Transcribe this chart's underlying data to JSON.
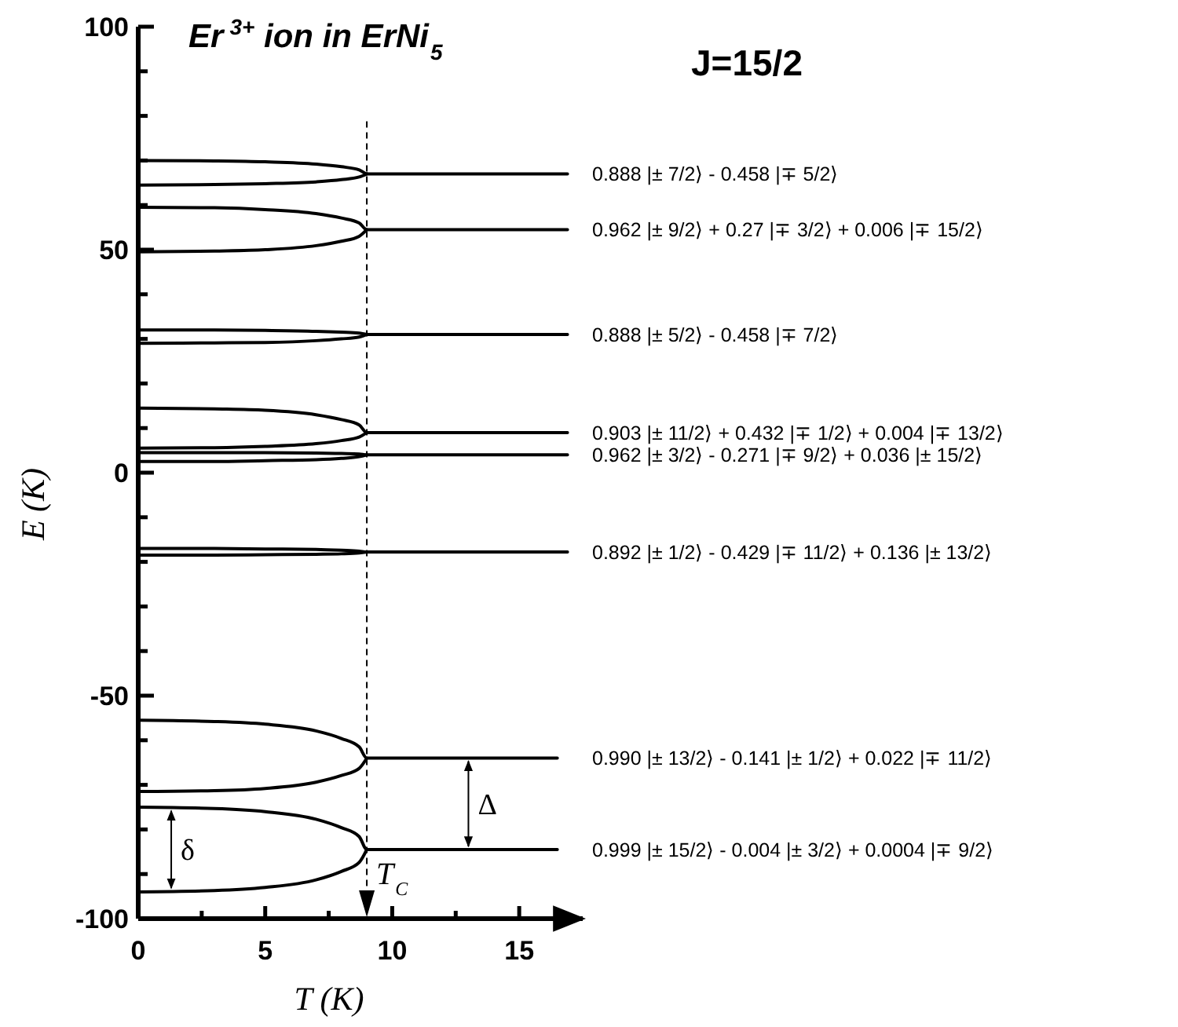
{
  "chart_data": {
    "type": "line",
    "title": "Er$^{3+}$ ion in ErNi$_{5}$",
    "subtitle": "J=15/2",
    "xlabel": "T (K)",
    "ylabel": "E (K)",
    "xlim": [
      0,
      17.5
    ],
    "ylim": [
      -100,
      100
    ],
    "xticks": [
      0,
      {
        "value": 2.5,
        "label": null
      },
      5,
      {
        "value": 7.5,
        "label": null
      },
      10,
      {
        "value": 12.5,
        "label": null
      },
      15
    ],
    "yticks": [
      -100,
      {
        "value": -90,
        "label": null
      },
      {
        "value": -80,
        "label": null
      },
      {
        "value": -70,
        "label": null
      },
      {
        "value": -60,
        "label": null
      },
      -50,
      {
        "value": -40,
        "label": null
      },
      {
        "value": -30,
        "label": null
      },
      {
        "value": -20,
        "label": null
      },
      {
        "value": -10,
        "label": null
      },
      0,
      {
        "value": 10,
        "label": null
      },
      {
        "value": 20,
        "label": null
      },
      {
        "value": 30,
        "label": null
      },
      {
        "value": 40,
        "label": null
      },
      50,
      {
        "value": 60,
        "label": null
      },
      {
        "value": 70,
        "label": null
      },
      {
        "value": 80,
        "label": null
      },
      {
        "value": 90,
        "label": null
      },
      100
    ],
    "grid": false,
    "marker": "none",
    "line_style": "solid",
    "series": [
      {
        "color": "#000000",
        "x": [
          0,
          3,
          5,
          7,
          8,
          8.7,
          9,
          16.9
        ],
        "values": [
          70,
          69.9,
          69.7,
          69.2,
          68.6,
          67.9,
          67,
          67
        ]
      },
      {
        "color": "#000000",
        "x": [
          0,
          3,
          5,
          7,
          8,
          8.7,
          9
        ],
        "values": [
          64.5,
          64.6,
          64.8,
          65.2,
          65.7,
          66.3,
          67
        ]
      },
      {
        "color": "#000000",
        "x": [
          0,
          3,
          5,
          7,
          8,
          8.7,
          9,
          16.9
        ],
        "values": [
          59.5,
          59.4,
          59,
          58.1,
          57.1,
          56,
          54.5,
          54.5
        ]
      },
      {
        "color": "#000000",
        "x": [
          0,
          3,
          5,
          7,
          8,
          8.7,
          9
        ],
        "values": [
          49.5,
          49.7,
          50,
          50.9,
          51.9,
          53,
          54.5
        ]
      },
      {
        "color": "#000000",
        "x": [
          0,
          3,
          5,
          7,
          8,
          8.7,
          9,
          16.9
        ],
        "values": [
          32,
          32,
          31.9,
          31.7,
          31.5,
          31.3,
          31,
          31
        ]
      },
      {
        "color": "#000000",
        "x": [
          0,
          3,
          5,
          7,
          8,
          8.7,
          9
        ],
        "values": [
          29,
          29.1,
          29.2,
          29.6,
          30,
          30.4,
          31
        ]
      },
      {
        "color": "#000000",
        "x": [
          0,
          3,
          5,
          7,
          8,
          8.7,
          9,
          16.9
        ],
        "values": [
          14.5,
          14.3,
          14,
          13,
          11.9,
          10.7,
          9,
          9
        ]
      },
      {
        "color": "#000000",
        "x": [
          0,
          3,
          5,
          7,
          8,
          8.7,
          9
        ],
        "values": [
          5.5,
          5.6,
          5.9,
          6.5,
          7.2,
          8,
          9
        ]
      },
      {
        "color": "#000000",
        "x": [
          0,
          3,
          5,
          7,
          8,
          8.7,
          9,
          16.9
        ],
        "values": [
          4.5,
          4.5,
          4.5,
          4.4,
          4.3,
          4.2,
          4,
          4
        ]
      },
      {
        "color": "#000000",
        "x": [
          0,
          3,
          5,
          7,
          8,
          8.7,
          9
        ],
        "values": [
          2.5,
          2.5,
          2.7,
          2.9,
          3.2,
          3.6,
          4
        ]
      },
      {
        "color": "#000000",
        "x": [
          0,
          3,
          5,
          7,
          8,
          8.7,
          9,
          16.9
        ],
        "values": [
          -17,
          -17,
          -17.1,
          -17.2,
          -17.4,
          -17.6,
          -17.8,
          -17.8
        ]
      },
      {
        "color": "#000000",
        "x": [
          0,
          3,
          5,
          7,
          8,
          8.7,
          9
        ],
        "values": [
          -18.5,
          -18.5,
          -18.4,
          -18.3,
          -18.2,
          -18,
          -17.8
        ]
      },
      {
        "color": "#000000",
        "x": [
          0,
          3,
          5,
          7,
          8,
          8.7,
          9,
          16.5
        ],
        "values": [
          -55.5,
          -55.8,
          -56.4,
          -57.9,
          -59.6,
          -61.5,
          -64,
          -64
        ]
      },
      {
        "color": "#000000",
        "x": [
          0,
          3,
          5,
          7,
          8,
          8.7,
          9
        ],
        "values": [
          -71.5,
          -71.3,
          -70.8,
          -69.4,
          -67.9,
          -66.3,
          -64
        ]
      },
      {
        "color": "#000000",
        "x": [
          0,
          3,
          5,
          7,
          8,
          8.7,
          9,
          16.5
        ],
        "values": [
          -75,
          -75.3,
          -76,
          -77.7,
          -79.6,
          -81.6,
          -84.5,
          -84.5
        ]
      },
      {
        "color": "#000000",
        "x": [
          0,
          3,
          5,
          7,
          8,
          8.7,
          9
        ],
        "values": [
          -94,
          -93.7,
          -93,
          -91.3,
          -89.4,
          -87.4,
          -84.5
        ]
      }
    ],
    "ref_lines": [
      {
        "axis": "x",
        "value": 9,
        "label": "T$_{C}$",
        "line_style": "dashed"
      }
    ],
    "annotations": [
      {
        "text": "0.888 |± 7/2⟩ - 0.458 |∓ 5/2⟩",
        "x": 16.9,
        "y": 67
      },
      {
        "text": "0.962 |± 9/2⟩ + 0.27 |∓ 3/2⟩ + 0.006 |∓ 15/2⟩",
        "x": 16.9,
        "y": 54.5
      },
      {
        "text": "0.888 |± 5/2⟩ - 0.458 |∓ 7/2⟩",
        "x": 16.9,
        "y": 31
      },
      {
        "text": "0.903 |± 11/2⟩ + 0.432 |∓ 1/2⟩ + 0.004 |∓ 13/2⟩",
        "x": 16.9,
        "y": 9
      },
      {
        "text": "0.962 |± 3/2⟩ - 0.271 |∓ 9/2⟩ + 0.036 |± 15/2⟩",
        "x": 16.9,
        "y": 4
      },
      {
        "text": "0.892 |± 1/2⟩ - 0.429 |∓ 11/2⟩ + 0.136 |± 13/2⟩",
        "x": 16.9,
        "y": -17.8
      },
      {
        "text": "0.990 |± 13/2⟩ - 0.141 |± 1/2⟩ + 0.022 |∓ 11/2⟩",
        "x": 16.5,
        "y": -64
      },
      {
        "text": "0.999 |± 15/2⟩ - 0.004 |± 3/2⟩ + 0.0004 |∓ 9/2⟩",
        "x": 16.5,
        "y": -84.5
      },
      {
        "text": "δ",
        "x": 1.3,
        "y": -75.1
      },
      {
        "text": "Δ",
        "x": 13,
        "y": -64
      }
    ]
  }
}
